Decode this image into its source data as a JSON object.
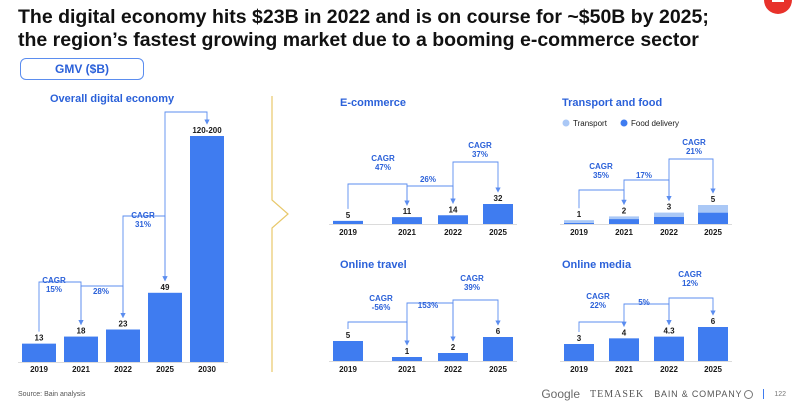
{
  "title": {
    "line1": "The digital economy hits $23B in 2022 and is on course for ~$50B by 2025;",
    "line2": "the region’s fastest growing market due to a booming e-commerce sector"
  },
  "unit_label": "GMV ($B)",
  "source": "Source: Bain analysis",
  "footer": {
    "google": "Google",
    "temasek": "TEMASEK",
    "bain": "BAIN & COMPANY",
    "page": "122"
  },
  "colors": {
    "bar": "#3f7cf0",
    "bar_light": "#aac8f6",
    "text_blue": "#2b61d9",
    "arrow": "#5b8def",
    "divider": "#e8c86a"
  },
  "chart_data": [
    {
      "id": "overall",
      "type": "bar",
      "title": "Overall digital economy",
      "categories": [
        "2019",
        "2021",
        "2022",
        "2025",
        "2030"
      ],
      "values": [
        13,
        18,
        23,
        49,
        160
      ],
      "value_labels": [
        "13",
        "18",
        "23",
        "49",
        "120-200"
      ],
      "ylim": [
        0,
        170
      ],
      "cagr": [
        {
          "from": 0,
          "to": 1,
          "label": "CAGR\n15%"
        },
        {
          "from": 1,
          "to": 2,
          "label": "28%"
        },
        {
          "from": 2,
          "to": 3,
          "label": "CAGR\n31%"
        },
        {
          "from": 3,
          "to": 4,
          "label": ""
        }
      ]
    },
    {
      "id": "ecommerce",
      "type": "bar",
      "title": "E-commerce",
      "categories": [
        "2019",
        "2021",
        "2022",
        "2025"
      ],
      "values": [
        5,
        11,
        14,
        32
      ],
      "value_labels": [
        "5",
        "11",
        "14",
        "32"
      ],
      "ylim": [
        0,
        150
      ],
      "cagr": [
        {
          "from": 0,
          "to": 1,
          "label": "CAGR\n47%"
        },
        {
          "from": 1,
          "to": 2,
          "label": "26%"
        },
        {
          "from": 2,
          "to": 3,
          "label": "CAGR\n37%"
        }
      ]
    },
    {
      "id": "transport",
      "type": "stacked-bar",
      "title": "Transport and food",
      "categories": [
        "2019",
        "2021",
        "2022",
        "2025"
      ],
      "legend": [
        {
          "name": "Transport",
          "color": "#aac8f6"
        },
        {
          "name": "Food delivery",
          "color": "#3f7cf0"
        }
      ],
      "series": [
        {
          "name": "Food delivery",
          "values": [
            0.3,
            1.3,
            1.9,
            3.0
          ]
        },
        {
          "name": "Transport",
          "values": [
            0.7,
            0.7,
            1.1,
            2.0
          ]
        }
      ],
      "value_labels": [
        "1",
        "2",
        "3",
        "5"
      ],
      "ylim": [
        0,
        22
      ],
      "cagr": [
        {
          "from": 0,
          "to": 1,
          "label": "CAGR\n35%"
        },
        {
          "from": 1,
          "to": 2,
          "label": "17%"
        },
        {
          "from": 2,
          "to": 3,
          "label": "CAGR\n21%"
        }
      ]
    },
    {
      "id": "travel",
      "type": "bar",
      "title": "Online travel",
      "categories": [
        "2019",
        "2021",
        "2022",
        "2025"
      ],
      "values": [
        5,
        1,
        2,
        6
      ],
      "value_labels": [
        "5",
        "1",
        "2",
        "6"
      ],
      "ylim": [
        0,
        24
      ],
      "cagr": [
        {
          "from": 0,
          "to": 1,
          "label": "CAGR\n-56%"
        },
        {
          "from": 1,
          "to": 2,
          "label": "153%"
        },
        {
          "from": 2,
          "to": 3,
          "label": "CAGR\n39%"
        }
      ]
    },
    {
      "id": "media",
      "type": "bar",
      "title": "Online media",
      "categories": [
        "2019",
        "2021",
        "2022",
        "2025"
      ],
      "values": [
        3,
        4,
        4.3,
        6
      ],
      "value_labels": [
        "3",
        "4",
        "4.3",
        "6"
      ],
      "ylim": [
        0,
        24
      ],
      "cagr": [
        {
          "from": 0,
          "to": 1,
          "label": "CAGR\n22%"
        },
        {
          "from": 1,
          "to": 2,
          "label": "5%"
        },
        {
          "from": 2,
          "to": 3,
          "label": "CAGR\n12%"
        }
      ]
    }
  ]
}
